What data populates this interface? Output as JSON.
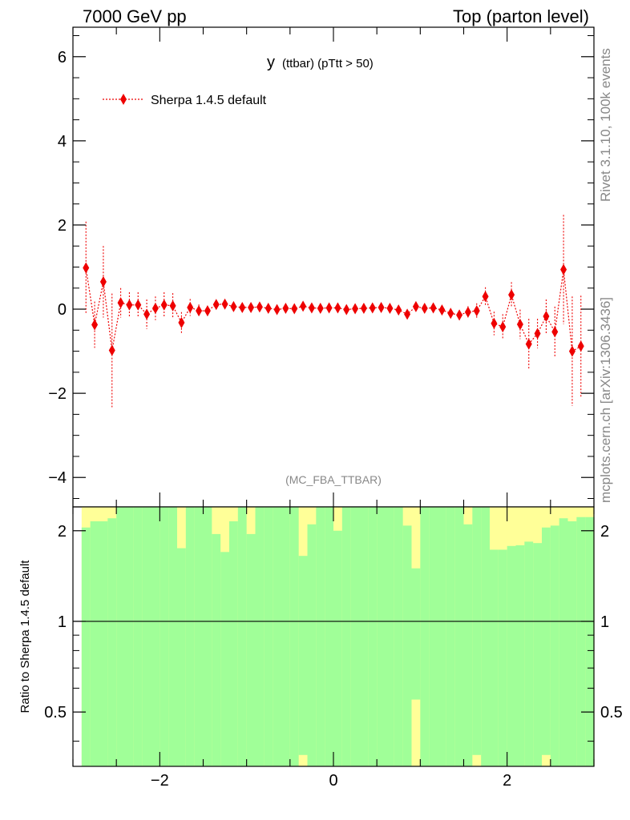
{
  "header": {
    "left": "7000 GeV pp",
    "right": "Top (parton level)"
  },
  "side_labels": {
    "rivet": "Rivet 3.1.10,  100k events",
    "source": "mcplots.cern.ch [arXiv:1306.3436]"
  },
  "colors": {
    "series": "#ee0000",
    "band_inner": "#a0ff98",
    "band_outer": "#ffff98",
    "axis": "#000000"
  },
  "chart_data": [
    {
      "type": "scatter",
      "title_main": "y",
      "title_sub": "(ttbar)  (pTtt > 50)",
      "watermark": "(MC_FBA_TTBAR)",
      "xlim": [
        -3,
        3
      ],
      "ylim": [
        -4.7,
        6.7
      ],
      "y_ticks": [
        -4,
        -2,
        0,
        2,
        4,
        6
      ],
      "y_tick_labels": [
        "−4",
        "−2",
        "0",
        "2",
        "4",
        "6"
      ],
      "legend": {
        "placement": "top-left",
        "entries": [
          "Sherpa 1.4.5 default"
        ]
      },
      "series": [
        {
          "name": "Sherpa 1.4.5 default",
          "x": [
            -2.85,
            -2.75,
            -2.65,
            -2.55,
            -2.45,
            -2.35,
            -2.25,
            -2.15,
            -2.05,
            -1.95,
            -1.85,
            -1.75,
            -1.65,
            -1.55,
            -1.45,
            -1.35,
            -1.25,
            -1.15,
            -1.05,
            -0.95,
            -0.85,
            -0.75,
            -0.65,
            -0.55,
            -0.45,
            -0.35,
            -0.25,
            -0.15,
            -0.05,
            0.05,
            0.15,
            0.25,
            0.35,
            0.45,
            0.55,
            0.65,
            0.75,
            0.85,
            0.95,
            1.05,
            1.15,
            1.25,
            1.35,
            1.45,
            1.55,
            1.65,
            1.75,
            1.85,
            1.95,
            2.05,
            2.15,
            2.25,
            2.35,
            2.45,
            2.55,
            2.65,
            2.75,
            2.85
          ],
          "y": [
            0.98,
            -0.37,
            0.65,
            -0.98,
            0.15,
            0.1,
            0.1,
            -0.12,
            0.02,
            0.1,
            0.08,
            -0.32,
            0.04,
            -0.04,
            -0.04,
            0.11,
            0.12,
            0.06,
            0.04,
            0.04,
            0.05,
            0.02,
            -0.01,
            0.02,
            0.01,
            0.07,
            0.03,
            0.02,
            0.03,
            0.03,
            -0.01,
            0.01,
            0.02,
            0.03,
            0.04,
            0.02,
            -0.02,
            -0.12,
            0.06,
            0.02,
            0.03,
            -0.02,
            -0.1,
            -0.14,
            -0.07,
            -0.04,
            0.3,
            -0.34,
            -0.42,
            0.34,
            -0.36,
            -0.83,
            -0.58,
            -0.17,
            -0.54,
            0.94,
            -1.0,
            -0.88
          ],
          "err": [
            1.1,
            0.55,
            0.85,
            1.35,
            0.35,
            0.3,
            0.3,
            0.35,
            0.28,
            0.3,
            0.3,
            0.25,
            0.2,
            0.15,
            0.12,
            0.1,
            0.1,
            0.08,
            0.08,
            0.08,
            0.07,
            0.07,
            0.07,
            0.07,
            0.07,
            0.07,
            0.07,
            0.07,
            0.07,
            0.07,
            0.07,
            0.07,
            0.07,
            0.07,
            0.07,
            0.07,
            0.07,
            0.07,
            0.07,
            0.08,
            0.08,
            0.1,
            0.1,
            0.12,
            0.14,
            0.18,
            0.22,
            0.28,
            0.3,
            0.3,
            0.35,
            0.6,
            0.35,
            0.4,
            0.6,
            1.3,
            1.3,
            1.2
          ]
        }
      ]
    },
    {
      "type": "area",
      "ylabel": "Ratio to Sherpa 1.4.5 default",
      "xlim": [
        -3,
        3
      ],
      "ylim": [
        0.33,
        2.4
      ],
      "y_scale": "log",
      "x_ticks": [
        -2,
        0,
        2
      ],
      "x_tick_labels": [
        "−2",
        "0",
        "2"
      ],
      "y_ticks": [
        0.5,
        1,
        2
      ],
      "y_tick_labels": [
        "0.5",
        "1",
        "2"
      ],
      "reference_line": 1,
      "bands": {
        "x_edges": [
          -2.9,
          -2.8,
          -2.7,
          -2.6,
          -2.5,
          -2.4,
          -2.3,
          -2.2,
          -2.1,
          -2.0,
          -1.9,
          -1.8,
          -1.7,
          -1.6,
          -1.5,
          -1.4,
          -1.3,
          -1.2,
          -1.1,
          -1.0,
          -0.9,
          -0.8,
          -0.7,
          -0.6,
          -0.5,
          -0.4,
          -0.3,
          -0.2,
          -0.1,
          0.0,
          0.1,
          0.2,
          0.3,
          0.4,
          0.5,
          0.6,
          0.7,
          0.8,
          0.9,
          1.0,
          1.1,
          1.2,
          1.3,
          1.4,
          1.5,
          1.6,
          1.7,
          1.8,
          1.9,
          2.0,
          2.1,
          2.2,
          2.3,
          2.4,
          2.5,
          2.6,
          2.7,
          2.8,
          2.9
        ],
        "inner_upper": [
          2.05,
          2.15,
          2.15,
          2.2,
          2.4,
          2.4,
          2.4,
          2.4,
          2.4,
          2.4,
          2.4,
          1.75,
          2.4,
          2.4,
          2.4,
          1.95,
          1.7,
          2.15,
          2.4,
          1.95,
          2.4,
          2.4,
          2.4,
          2.4,
          2.4,
          1.65,
          2.1,
          2.4,
          2.4,
          2.0,
          2.4,
          2.4,
          2.4,
          2.4,
          2.4,
          2.4,
          2.4,
          2.08,
          1.5,
          2.4,
          2.4,
          2.4,
          2.4,
          2.4,
          2.1,
          2.4,
          2.4,
          1.73,
          1.73,
          1.78,
          1.79,
          1.84,
          1.82,
          2.05,
          2.08,
          2.2,
          2.15,
          2.22,
          2.22
        ],
        "outer_upper": [
          2.4,
          2.4,
          2.4,
          2.4,
          2.4,
          2.4,
          2.4,
          2.4,
          2.4,
          2.4,
          2.4,
          2.4,
          2.4,
          2.4,
          2.4,
          2.4,
          2.4,
          2.4,
          2.4,
          2.4,
          2.4,
          2.4,
          2.4,
          2.4,
          2.4,
          2.4,
          2.4,
          2.4,
          2.4,
          2.4,
          2.4,
          2.4,
          2.4,
          2.4,
          2.4,
          2.4,
          2.4,
          2.4,
          2.4,
          2.4,
          2.4,
          2.4,
          2.4,
          2.4,
          2.4,
          2.4,
          2.4,
          2.4,
          2.4,
          2.4,
          2.4,
          2.4,
          2.4,
          2.4,
          2.4,
          2.4,
          2.4,
          2.4,
          2.4
        ],
        "inner_lower": [
          0.33,
          0.33,
          0.33,
          0.33,
          0.33,
          0.33,
          0.33,
          0.33,
          0.33,
          0.33,
          0.33,
          0.33,
          0.33,
          0.33,
          0.33,
          0.33,
          0.33,
          0.33,
          0.33,
          0.33,
          0.33,
          0.33,
          0.33,
          0.33,
          0.33,
          0.36,
          0.33,
          0.33,
          0.33,
          0.33,
          0.33,
          0.33,
          0.33,
          0.33,
          0.33,
          0.33,
          0.33,
          0.33,
          0.55,
          0.33,
          0.33,
          0.33,
          0.33,
          0.33,
          0.33,
          0.36,
          0.33,
          0.33,
          0.33,
          0.33,
          0.33,
          0.33,
          0.33,
          0.36,
          0.33,
          0.33,
          0.33,
          0.33,
          0.33
        ]
      }
    }
  ]
}
